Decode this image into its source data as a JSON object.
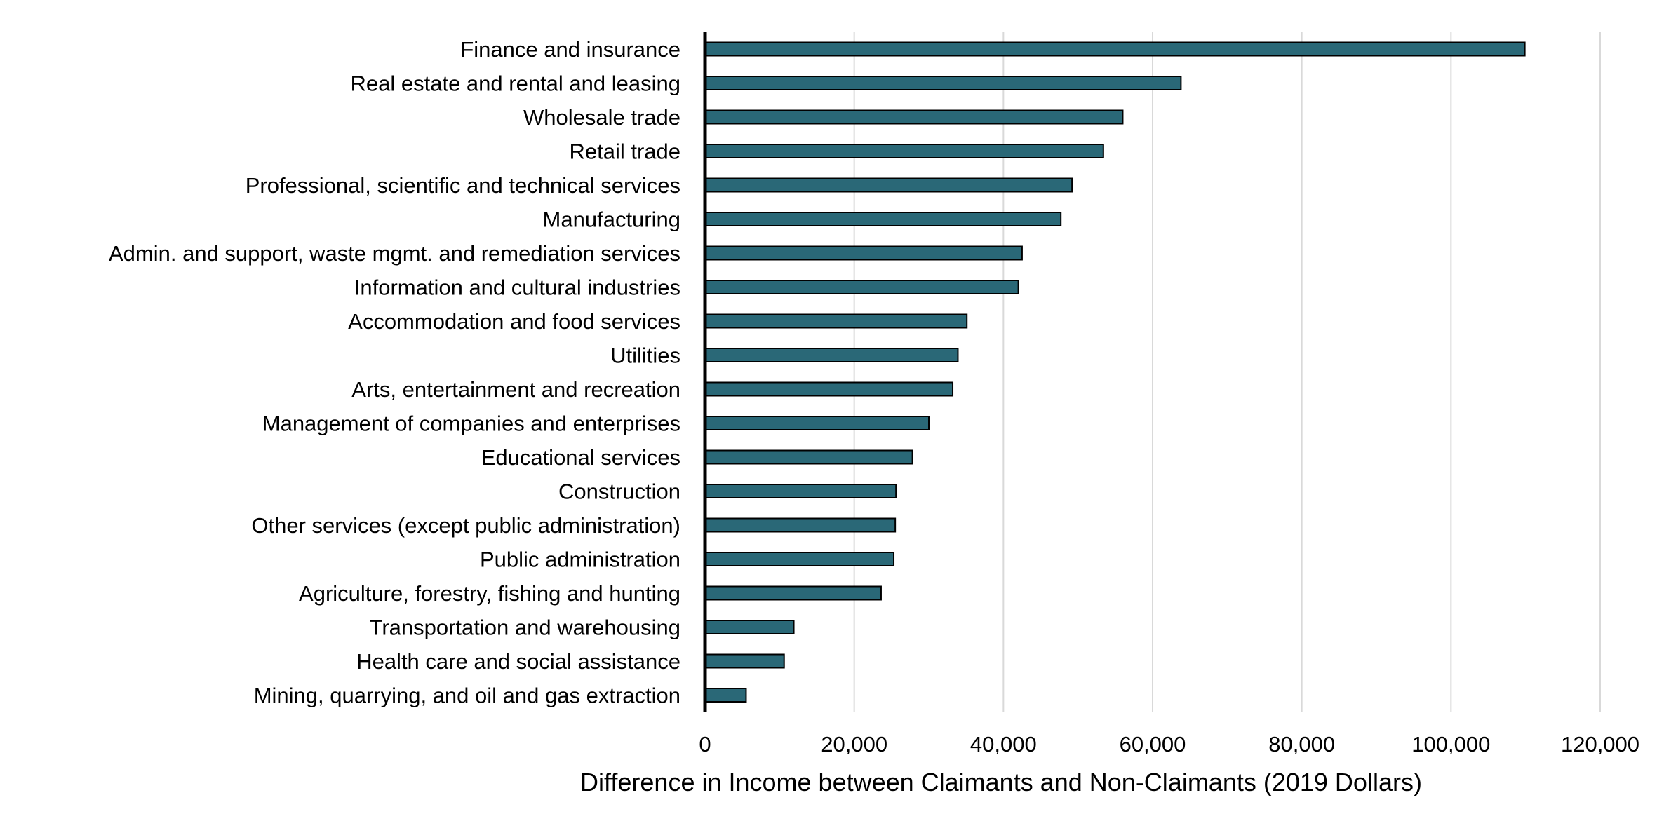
{
  "chart_data": {
    "type": "bar",
    "orientation": "horizontal",
    "title": "",
    "xlabel": "Difference in Income between Claimants and Non-Claimants (2019 Dollars)",
    "ylabel": "",
    "xlim": [
      0,
      120000
    ],
    "xticks": [
      "0",
      "20,000",
      "40,000",
      "60,000",
      "80,000",
      "100,000",
      "120,000"
    ],
    "xtick_values": [
      0,
      20000,
      40000,
      60000,
      80000,
      100000,
      120000
    ],
    "grid": true,
    "bar_color": "#2a6877",
    "categories": [
      "Finance and insurance",
      "Real estate and rental and leasing",
      "Wholesale trade",
      "Retail trade",
      "Professional, scientific and technical services",
      "Manufacturing",
      "Admin. and support, waste mgmt. and remediation services",
      "Information and cultural industries",
      "Accommodation and food services",
      "Utilities",
      "Arts, entertainment and recreation",
      "Management of companies and enterprises",
      "Educational services",
      "Construction",
      "Other services (except public administration)",
      "Public administration",
      "Agriculture, forestry, fishing and hunting",
      "Transportation and warehousing",
      "Health care and social assistance",
      "Mining, quarrying, and oil and gas extraction"
    ],
    "values": [
      109900,
      63800,
      56000,
      53400,
      49200,
      47700,
      42500,
      42000,
      35100,
      33900,
      33200,
      30000,
      27800,
      25600,
      25500,
      25300,
      23600,
      11900,
      10600,
      5500
    ]
  }
}
